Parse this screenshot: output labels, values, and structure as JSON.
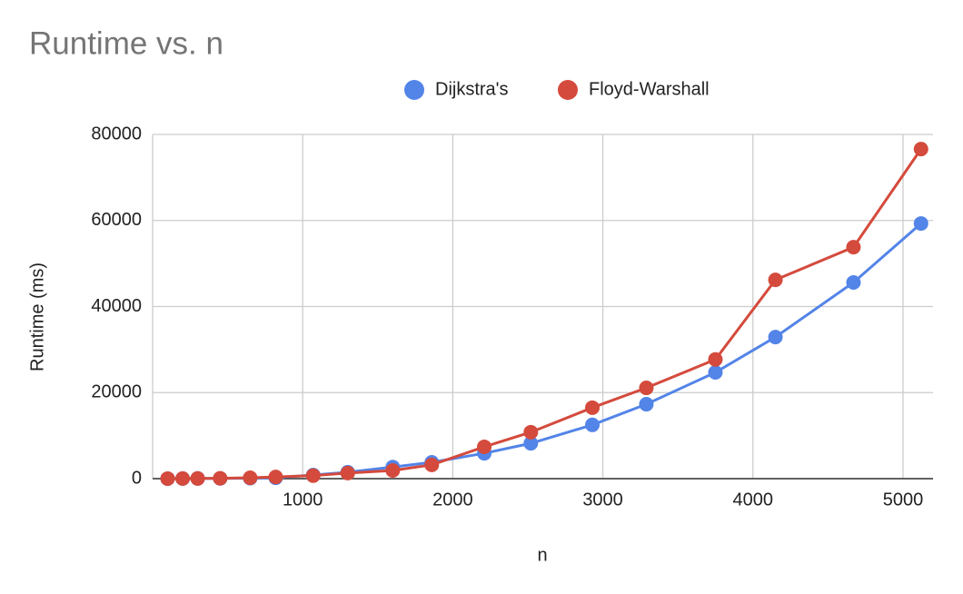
{
  "chart_data": {
    "type": "line",
    "title": "Runtime vs. n",
    "x_label": "n",
    "y_label": "Runtime (ms)",
    "x": [
      100,
      200,
      300,
      450,
      650,
      820,
      1070,
      1300,
      1600,
      1860,
      2210,
      2520,
      2930,
      3290,
      3750,
      4150,
      4670,
      5120
    ],
    "series": [
      {
        "name": "Dijkstra's",
        "color": "#5384e8",
        "values": [
          10,
          20,
          40,
          60,
          100,
          200,
          850,
          1500,
          2700,
          3800,
          5900,
          8200,
          12500,
          17300,
          24700,
          32900,
          45600,
          59300
        ]
      },
      {
        "name": "Floyd-Warshall",
        "color": "#d44a3c",
        "values": [
          10,
          20,
          40,
          80,
          200,
          400,
          700,
          1300,
          1900,
          3200,
          7400,
          10800,
          16500,
          21100,
          27700,
          46200,
          53800,
          76600
        ]
      }
    ],
    "xlim": [
      0,
      5200
    ],
    "xticks": [
      1000,
      2000,
      3000,
      4000,
      5000
    ],
    "ylim": [
      0,
      80000
    ],
    "yticks": [
      0,
      20000,
      40000,
      60000,
      80000
    ],
    "grid": true,
    "legend": "top"
  }
}
